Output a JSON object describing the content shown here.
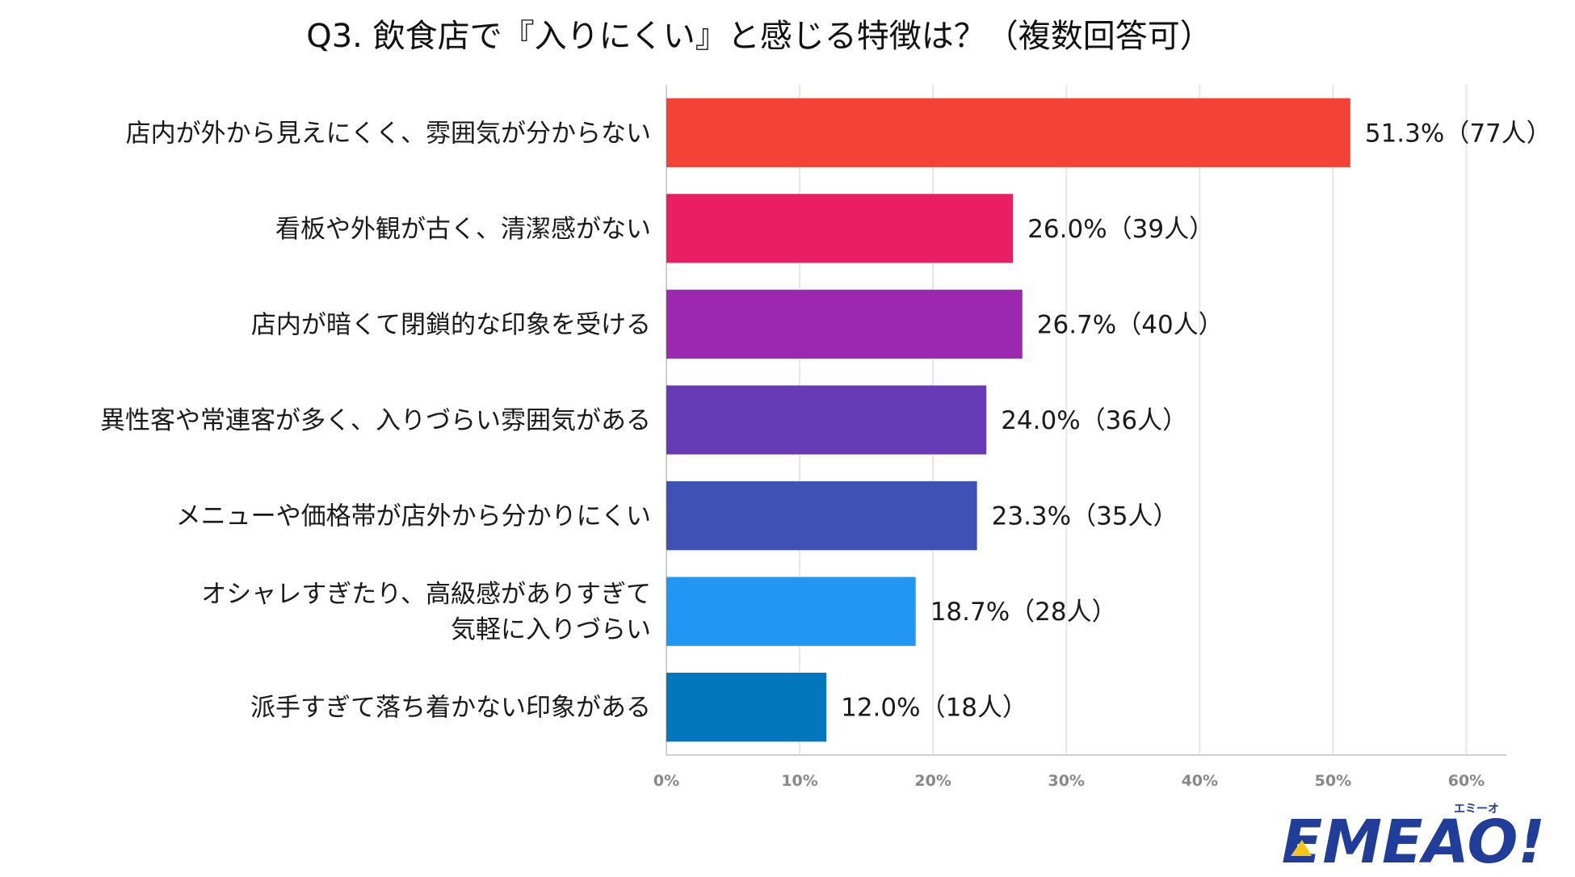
{
  "chart_data": {
    "type": "bar",
    "orientation": "horizontal",
    "title": "Q3. 飲食店で『入りにくい』と感じる特徴は？（複数回答可）",
    "categories": [
      [
        "店内が外から見えにくく、雰囲気が分からない"
      ],
      [
        "看板や外観が古く、清潔感がない"
      ],
      [
        "店内が暗くて閉鎖的な印象を受ける"
      ],
      [
        "異性客や常連客が多く、入りづらい雰囲気がある"
      ],
      [
        "メニューや価格帯が店外から分かりにくい"
      ],
      [
        "オシャレすぎたり、高級感がありすぎて",
        "気軽に入りづらい"
      ],
      [
        "派手すぎて落ち着かない印象がある"
      ]
    ],
    "values": [
      51.3,
      26.0,
      26.7,
      24.0,
      23.3,
      18.7,
      12.0
    ],
    "data_labels": [
      "51.3%（77人）",
      "26.0%（39人）",
      "26.7%（40人）",
      "24.0%（36人）",
      "23.3%（35人）",
      "18.7%（28人）",
      "12.0%（18人）"
    ],
    "colors": [
      "#f44336",
      "#e91e63",
      "#9c27b0",
      "#673ab7",
      "#3f51b5",
      "#2196f3",
      "#0277bd"
    ],
    "xlim": [
      0,
      63
    ],
    "xticks": [
      0,
      10,
      20,
      30,
      40,
      50,
      60
    ],
    "xtick_labels": [
      "0%",
      "10%",
      "20%",
      "30%",
      "40%",
      "50%",
      "60%"
    ],
    "grid": true,
    "xlabel": "",
    "ylabel": ""
  },
  "logo": {
    "text": "EMEAO!",
    "ruby": "エミーオ",
    "color": "#1f3d99",
    "accent_color": "#f5c518"
  }
}
